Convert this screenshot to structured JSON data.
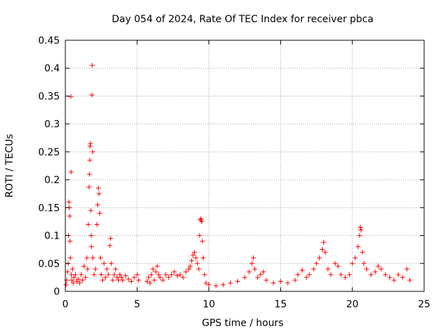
{
  "chart_data": {
    "type": "scatter",
    "title": "Day 054 of 2024, Rate Of TEC Index for receiver pbca",
    "xlabel": "GPS time / hours",
    "ylabel": "ROTI / TECUs",
    "xlim": [
      0,
      25
    ],
    "ylim": [
      0,
      0.45
    ],
    "xticks": [
      0,
      5,
      10,
      15,
      20,
      25
    ],
    "yticks": [
      0,
      0.05,
      0.1,
      0.15,
      0.2,
      0.25,
      0.3,
      0.35,
      0.4,
      0.45
    ],
    "xtick_labels": [
      "0",
      "5",
      "10",
      "15",
      "20",
      "25"
    ],
    "ytick_labels": [
      "0",
      "0.05",
      "0.1",
      "0.15",
      "0.2",
      "0.25",
      "0.3",
      "0.35",
      "0.4",
      "0.45"
    ],
    "grid": true,
    "marker": "+",
    "color": "#ff0000",
    "points": [
      [
        0.05,
        0.012
      ],
      [
        0.1,
        0.02
      ],
      [
        0.15,
        0.035
      ],
      [
        0.2,
        0.05
      ],
      [
        0.22,
        0.1
      ],
      [
        0.25,
        0.16
      ],
      [
        0.27,
        0.15
      ],
      [
        0.3,
        0.135
      ],
      [
        0.32,
        0.09
      ],
      [
        0.35,
        0.06
      ],
      [
        0.38,
        0.349
      ],
      [
        0.4,
        0.214
      ],
      [
        0.42,
        0.03
      ],
      [
        0.45,
        0.02
      ],
      [
        0.5,
        0.04
      ],
      [
        0.55,
        0.015
      ],
      [
        0.6,
        0.025
      ],
      [
        0.7,
        0.03
      ],
      [
        0.8,
        0.018
      ],
      [
        0.9,
        0.022
      ],
      [
        1.0,
        0.015
      ],
      [
        1.1,
        0.03
      ],
      [
        1.2,
        0.02
      ],
      [
        1.3,
        0.045
      ],
      [
        1.4,
        0.025
      ],
      [
        1.5,
        0.06
      ],
      [
        1.55,
        0.04
      ],
      [
        1.6,
        0.12
      ],
      [
        1.65,
        0.187
      ],
      [
        1.68,
        0.21
      ],
      [
        1.7,
        0.235
      ],
      [
        1.72,
        0.26
      ],
      [
        1.75,
        0.265
      ],
      [
        1.78,
        0.145
      ],
      [
        1.8,
        0.1
      ],
      [
        1.82,
        0.08
      ],
      [
        1.85,
        0.352
      ],
      [
        1.87,
        0.405
      ],
      [
        1.9,
        0.25
      ],
      [
        1.92,
        0.06
      ],
      [
        2.0,
        0.03
      ],
      [
        2.1,
        0.04
      ],
      [
        2.2,
        0.12
      ],
      [
        2.25,
        0.155
      ],
      [
        2.3,
        0.185
      ],
      [
        2.35,
        0.175
      ],
      [
        2.4,
        0.14
      ],
      [
        2.45,
        0.06
      ],
      [
        2.5,
        0.03
      ],
      [
        2.6,
        0.02
      ],
      [
        2.7,
        0.05
      ],
      [
        2.8,
        0.025
      ],
      [
        2.9,
        0.04
      ],
      [
        3.0,
        0.03
      ],
      [
        3.1,
        0.082
      ],
      [
        3.15,
        0.095
      ],
      [
        3.2,
        0.05
      ],
      [
        3.3,
        0.02
      ],
      [
        3.4,
        0.03
      ],
      [
        3.5,
        0.04
      ],
      [
        3.6,
        0.025
      ],
      [
        3.7,
        0.02
      ],
      [
        3.8,
        0.03
      ],
      [
        3.9,
        0.025
      ],
      [
        4.0,
        0.02
      ],
      [
        4.2,
        0.028
      ],
      [
        4.4,
        0.022
      ],
      [
        4.6,
        0.018
      ],
      [
        4.8,
        0.025
      ],
      [
        5.0,
        0.03
      ],
      [
        5.1,
        0.02
      ],
      [
        5.7,
        0.018
      ],
      [
        5.8,
        0.025
      ],
      [
        5.9,
        0.015
      ],
      [
        6.0,
        0.03
      ],
      [
        6.1,
        0.04
      ],
      [
        6.2,
        0.02
      ],
      [
        6.3,
        0.035
      ],
      [
        6.4,
        0.045
      ],
      [
        6.5,
        0.03
      ],
      [
        6.6,
        0.025
      ],
      [
        6.8,
        0.02
      ],
      [
        7.0,
        0.03
      ],
      [
        7.2,
        0.025
      ],
      [
        7.4,
        0.03
      ],
      [
        7.6,
        0.035
      ],
      [
        7.8,
        0.028
      ],
      [
        8.0,
        0.03
      ],
      [
        8.2,
        0.025
      ],
      [
        8.4,
        0.035
      ],
      [
        8.6,
        0.04
      ],
      [
        8.7,
        0.045
      ],
      [
        8.8,
        0.055
      ],
      [
        8.9,
        0.065
      ],
      [
        9.0,
        0.07
      ],
      [
        9.1,
        0.06
      ],
      [
        9.2,
        0.05
      ],
      [
        9.3,
        0.04
      ],
      [
        9.35,
        0.1
      ],
      [
        9.4,
        0.128
      ],
      [
        9.45,
        0.13
      ],
      [
        9.5,
        0.125
      ],
      [
        9.55,
        0.09
      ],
      [
        9.6,
        0.06
      ],
      [
        9.7,
        0.03
      ],
      [
        9.8,
        0.015
      ],
      [
        10.0,
        0.012
      ],
      [
        10.5,
        0.01
      ],
      [
        11.0,
        0.012
      ],
      [
        11.5,
        0.015
      ],
      [
        12.0,
        0.018
      ],
      [
        12.5,
        0.025
      ],
      [
        12.8,
        0.035
      ],
      [
        13.0,
        0.05
      ],
      [
        13.1,
        0.06
      ],
      [
        13.2,
        0.04
      ],
      [
        13.4,
        0.025
      ],
      [
        13.6,
        0.03
      ],
      [
        13.8,
        0.035
      ],
      [
        14.0,
        0.02
      ],
      [
        14.5,
        0.015
      ],
      [
        15.0,
        0.018
      ],
      [
        15.5,
        0.015
      ],
      [
        16.0,
        0.02
      ],
      [
        16.2,
        0.03
      ],
      [
        16.5,
        0.038
      ],
      [
        16.8,
        0.025
      ],
      [
        17.0,
        0.03
      ],
      [
        17.3,
        0.04
      ],
      [
        17.5,
        0.05
      ],
      [
        17.7,
        0.06
      ],
      [
        17.9,
        0.075
      ],
      [
        18.0,
        0.088
      ],
      [
        18.1,
        0.07
      ],
      [
        18.3,
        0.04
      ],
      [
        18.5,
        0.03
      ],
      [
        18.8,
        0.05
      ],
      [
        19.0,
        0.045
      ],
      [
        19.2,
        0.03
      ],
      [
        19.5,
        0.025
      ],
      [
        19.8,
        0.03
      ],
      [
        20.0,
        0.05
      ],
      [
        20.2,
        0.06
      ],
      [
        20.4,
        0.08
      ],
      [
        20.5,
        0.1
      ],
      [
        20.55,
        0.115
      ],
      [
        20.6,
        0.11
      ],
      [
        20.7,
        0.07
      ],
      [
        20.8,
        0.05
      ],
      [
        21.0,
        0.04
      ],
      [
        21.3,
        0.03
      ],
      [
        21.6,
        0.035
      ],
      [
        21.8,
        0.045
      ],
      [
        22.0,
        0.04
      ],
      [
        22.3,
        0.03
      ],
      [
        22.6,
        0.025
      ],
      [
        22.9,
        0.02
      ],
      [
        23.2,
        0.03
      ],
      [
        23.5,
        0.025
      ],
      [
        23.8,
        0.04
      ],
      [
        24.0,
        0.02
      ]
    ]
  }
}
